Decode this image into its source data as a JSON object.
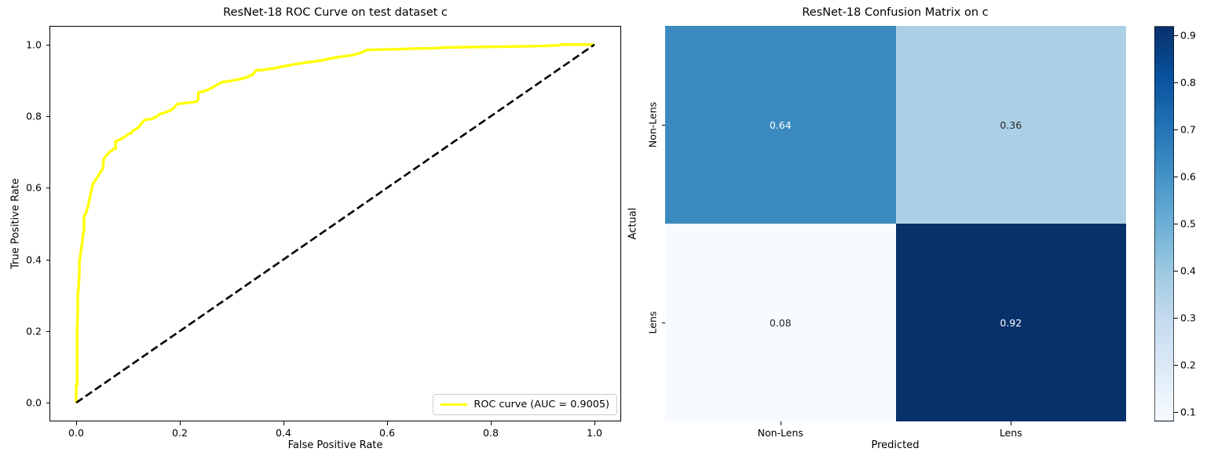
{
  "figure": {
    "background": "#ffffff"
  },
  "roc": {
    "title": "ResNet-18 ROC Curve on test dataset c",
    "xlabel": "False Positive Rate",
    "ylabel": "True Positive Rate",
    "x_tick_labels": [
      "0.0",
      "0.2",
      "0.4",
      "0.6",
      "0.8",
      "1.0"
    ],
    "x_tick_values": [
      0,
      0.2,
      0.4,
      0.6,
      0.8,
      1.0
    ],
    "y_tick_labels": [
      "0.0",
      "0.2",
      "0.4",
      "0.6",
      "0.8",
      "1.0"
    ],
    "y_tick_values": [
      0,
      0.2,
      0.4,
      0.6,
      0.8,
      1.0
    ],
    "legend_label": "ROC curve (AUC = 0.9005)",
    "roc_color": "#ffff00",
    "diagonal_color": "#000000"
  },
  "confusion": {
    "title": "ResNet-18 Confusion Matrix on c",
    "xlabel": "Predicted",
    "ylabel": "Actual",
    "x_tick_labels": [
      "Non-Lens",
      "Lens"
    ],
    "y_tick_labels": [
      "Non-Lens",
      "Lens"
    ],
    "value_labels": [
      [
        "0.64",
        "0.36"
      ],
      [
        "0.08",
        "0.92"
      ]
    ],
    "cell_colors": [
      [
        "#3a8abf",
        "#abd0e6"
      ],
      [
        "#f7fbff",
        "#08306b"
      ]
    ],
    "cell_text_colors": [
      [
        "#ffffff",
        "#262626"
      ],
      [
        "#262626",
        "#ffffff"
      ]
    ],
    "colorbar": {
      "vmin": 0.08,
      "vmax": 0.92,
      "tick_labels": [
        "0.1",
        "0.2",
        "0.3",
        "0.4",
        "0.5",
        "0.6",
        "0.7",
        "0.8",
        "0.9"
      ],
      "tick_values": [
        0.1,
        0.2,
        0.3,
        0.4,
        0.5,
        0.6,
        0.7,
        0.8,
        0.9
      ],
      "gradient_bottom_to_top": [
        "#f7fbff",
        "#deebf7",
        "#c6dbef",
        "#9ecae1",
        "#6baed6",
        "#4292c6",
        "#2171b5",
        "#08519c",
        "#08306b"
      ]
    }
  },
  "chart_data": [
    {
      "type": "line",
      "title": "ResNet-18 ROC Curve on test dataset c",
      "xlabel": "False Positive Rate",
      "ylabel": "True Positive Rate",
      "xlim": [
        -0.05,
        1.05
      ],
      "ylim": [
        -0.05,
        1.05
      ],
      "grid": false,
      "legend_position": "lower right",
      "series": [
        {
          "name": "ROC curve (AUC = 0.9005)",
          "color": "#ffff00",
          "style": "solid",
          "points": [
            [
              0.0,
              0.0
            ],
            [
              0.0,
              0.05
            ],
            [
              0.002,
              0.05
            ],
            [
              0.002,
              0.21
            ],
            [
              0.003,
              0.25
            ],
            [
              0.003,
              0.3
            ],
            [
              0.005,
              0.33
            ],
            [
              0.006,
              0.36
            ],
            [
              0.006,
              0.39
            ],
            [
              0.008,
              0.41
            ],
            [
              0.01,
              0.43
            ],
            [
              0.012,
              0.45
            ],
            [
              0.013,
              0.47
            ],
            [
              0.015,
              0.48
            ],
            [
              0.015,
              0.52
            ],
            [
              0.019,
              0.53
            ],
            [
              0.023,
              0.55
            ],
            [
              0.026,
              0.57
            ],
            [
              0.029,
              0.59
            ],
            [
              0.032,
              0.61
            ],
            [
              0.036,
              0.62
            ],
            [
              0.041,
              0.63
            ],
            [
              0.045,
              0.64
            ],
            [
              0.05,
              0.65
            ],
            [
              0.052,
              0.66
            ],
            [
              0.053,
              0.68
            ],
            [
              0.058,
              0.69
            ],
            [
              0.064,
              0.7
            ],
            [
              0.07,
              0.705
            ],
            [
              0.073,
              0.71
            ],
            [
              0.076,
              0.71
            ],
            [
              0.076,
              0.73
            ],
            [
              0.085,
              0.735
            ],
            [
              0.09,
              0.74
            ],
            [
              0.096,
              0.745
            ],
            [
              0.1,
              0.75
            ],
            [
              0.106,
              0.753
            ],
            [
              0.11,
              0.76
            ],
            [
              0.116,
              0.765
            ],
            [
              0.121,
              0.77
            ],
            [
              0.126,
              0.78
            ],
            [
              0.13,
              0.786
            ],
            [
              0.133,
              0.79
            ],
            [
              0.143,
              0.792
            ],
            [
              0.15,
              0.795
            ],
            [
              0.156,
              0.8
            ],
            [
              0.161,
              0.806
            ],
            [
              0.167,
              0.808
            ],
            [
              0.171,
              0.81
            ],
            [
              0.18,
              0.815
            ],
            [
              0.186,
              0.82
            ],
            [
              0.191,
              0.827
            ],
            [
              0.194,
              0.833
            ],
            [
              0.2,
              0.835
            ],
            [
              0.212,
              0.837
            ],
            [
              0.224,
              0.839
            ],
            [
              0.233,
              0.841
            ],
            [
              0.235,
              0.845
            ],
            [
              0.236,
              0.866
            ],
            [
              0.252,
              0.872
            ],
            [
              0.26,
              0.878
            ],
            [
              0.267,
              0.884
            ],
            [
              0.275,
              0.89
            ],
            [
              0.282,
              0.895
            ],
            [
              0.295,
              0.898
            ],
            [
              0.303,
              0.9
            ],
            [
              0.314,
              0.903
            ],
            [
              0.323,
              0.906
            ],
            [
              0.331,
              0.91
            ],
            [
              0.34,
              0.916
            ],
            [
              0.343,
              0.921
            ],
            [
              0.347,
              0.928
            ],
            [
              0.36,
              0.929
            ],
            [
              0.368,
              0.931
            ],
            [
              0.379,
              0.933
            ],
            [
              0.396,
              0.938
            ],
            [
              0.414,
              0.943
            ],
            [
              0.43,
              0.947
            ],
            [
              0.444,
              0.95
            ],
            [
              0.46,
              0.953
            ],
            [
              0.474,
              0.956
            ],
            [
              0.49,
              0.961
            ],
            [
              0.505,
              0.965
            ],
            [
              0.52,
              0.968
            ],
            [
              0.535,
              0.971
            ],
            [
              0.546,
              0.976
            ],
            [
              0.556,
              0.981
            ],
            [
              0.561,
              0.985
            ],
            [
              0.585,
              0.986
            ],
            [
              0.61,
              0.987
            ],
            [
              0.635,
              0.988
            ],
            [
              0.66,
              0.989
            ],
            [
              0.69,
              0.99
            ],
            [
              0.712,
              0.992
            ],
            [
              0.76,
              0.993
            ],
            [
              0.81,
              0.994
            ],
            [
              0.86,
              0.995
            ],
            [
              0.9,
              0.996
            ],
            [
              0.932,
              0.998
            ],
            [
              0.935,
              1.0
            ],
            [
              1.0,
              1.0
            ]
          ]
        },
        {
          "name": "chance-diagonal",
          "color": "#000000",
          "style": "dashed",
          "points": [
            [
              0.0,
              0.0
            ],
            [
              1.0,
              1.0
            ]
          ]
        }
      ]
    },
    {
      "type": "heatmap",
      "title": "ResNet-18 Confusion Matrix on c",
      "xlabel": "Predicted",
      "ylabel": "Actual",
      "x_categories": [
        "Non-Lens",
        "Lens"
      ],
      "y_categories": [
        "Non-Lens",
        "Lens"
      ],
      "values": [
        [
          0.64,
          0.36
        ],
        [
          0.08,
          0.92
        ]
      ],
      "colormap": "Blues",
      "vmin": 0.08,
      "vmax": 0.92,
      "colorbar_ticks": [
        0.1,
        0.2,
        0.3,
        0.4,
        0.5,
        0.6,
        0.7,
        0.8,
        0.9
      ],
      "legend_position": "colorbar-right"
    }
  ]
}
